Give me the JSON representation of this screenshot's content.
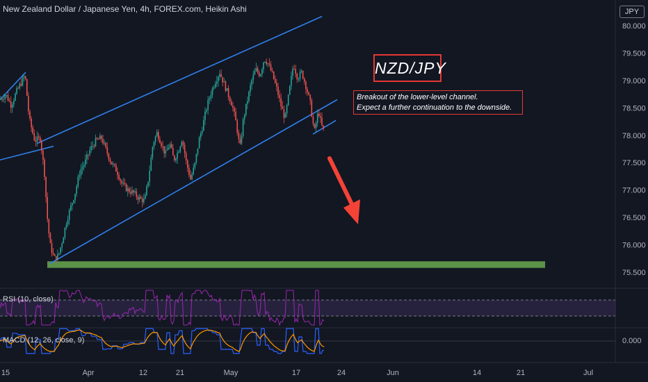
{
  "header": {
    "title": "New Zealand Dollar / Japanese Yen, 4h, FOREX.com, Heikin Ashi",
    "currency": "JPY"
  },
  "annotations": {
    "pair_label": "NZD/JPY",
    "note_line1": "Breakout of the lower-level channel.",
    "note_line2": "Expect a further continuation to the downside."
  },
  "indicators": {
    "rsi_label": "RSI (10, close)",
    "macd_label": "MACD (12, 26, close, 9)",
    "macd_value": "0.000"
  },
  "colors": {
    "background": "#131722",
    "up_candle": "#26a69a",
    "down_candle": "#ef5350",
    "channel_line": "#2962ff",
    "support_zone": "#6aa84f",
    "annotation_red": "#e53935",
    "rsi_line": "#9c27b0",
    "macd_line": "#2962ff",
    "signal_line": "#ff9800"
  },
  "chart_data": {
    "type": "candlestick",
    "style": "Heikin Ashi",
    "symbol": "NZD/JPY",
    "timeframe": "4h",
    "ylim": [
      75.35,
      80.3
    ],
    "y_ticks": [
      "80.000",
      "79.500",
      "79.000",
      "78.500",
      "78.000",
      "77.500",
      "77.000",
      "76.500",
      "76.000",
      "75.500"
    ],
    "x_ticks": [
      "15",
      "Apr",
      "12",
      "21",
      "May",
      "17",
      "24",
      "Jun",
      "14",
      "21",
      "Jul"
    ],
    "price_path": [
      [
        0,
        78.65
      ],
      [
        8,
        78.75
      ],
      [
        16,
        78.55
      ],
      [
        24,
        78.8
      ],
      [
        30,
        78.95
      ],
      [
        36,
        79.1
      ],
      [
        42,
        78.3
      ],
      [
        50,
        77.9
      ],
      [
        58,
        77.95
      ],
      [
        64,
        77.3
      ],
      [
        68,
        76.5
      ],
      [
        72,
        76.0
      ],
      [
        78,
        75.75
      ],
      [
        84,
        75.8
      ],
      [
        90,
        76.1
      ],
      [
        96,
        76.45
      ],
      [
        102,
        76.7
      ],
      [
        108,
        76.95
      ],
      [
        115,
        77.35
      ],
      [
        122,
        77.5
      ],
      [
        130,
        77.75
      ],
      [
        138,
        77.9
      ],
      [
        146,
        77.95
      ],
      [
        152,
        77.75
      ],
      [
        160,
        77.5
      ],
      [
        168,
        77.35
      ],
      [
        176,
        77.1
      ],
      [
        184,
        77.0
      ],
      [
        192,
        76.95
      ],
      [
        200,
        76.85
      ],
      [
        208,
        76.8
      ],
      [
        214,
        77.25
      ],
      [
        220,
        77.85
      ],
      [
        226,
        78.05
      ],
      [
        232,
        77.85
      ],
      [
        238,
        77.65
      ],
      [
        244,
        77.85
      ],
      [
        250,
        77.55
      ],
      [
        256,
        77.7
      ],
      [
        262,
        77.95
      ],
      [
        268,
        77.5
      ],
      [
        274,
        77.2
      ],
      [
        280,
        77.45
      ],
      [
        286,
        77.9
      ],
      [
        292,
        78.2
      ],
      [
        298,
        78.55
      ],
      [
        304,
        78.8
      ],
      [
        310,
        79.0
      ],
      [
        316,
        79.15
      ],
      [
        322,
        78.95
      ],
      [
        328,
        78.75
      ],
      [
        334,
        78.55
      ],
      [
        340,
        78.2
      ],
      [
        345,
        77.75
      ],
      [
        350,
        78.3
      ],
      [
        356,
        78.65
      ],
      [
        362,
        79.0
      ],
      [
        368,
        79.2
      ],
      [
        374,
        79.1
      ],
      [
        380,
        79.4
      ],
      [
        386,
        79.3
      ],
      [
        392,
        79.1
      ],
      [
        398,
        78.85
      ],
      [
        404,
        78.55
      ],
      [
        410,
        78.3
      ],
      [
        416,
        78.8
      ],
      [
        422,
        79.3
      ],
      [
        428,
        79.05
      ],
      [
        434,
        79.15
      ],
      [
        440,
        78.9
      ],
      [
        446,
        78.6
      ],
      [
        452,
        78.05
      ],
      [
        458,
        78.45
      ],
      [
        462,
        78.2
      ],
      [
        466,
        78.05
      ]
    ],
    "support_zone": {
      "from": 75.58,
      "to": 75.7
    },
    "channels": [
      {
        "name": "upper",
        "points": [
          [
            "53",
            77.85
          ],
          [
            "463",
            80.17
          ]
        ]
      },
      {
        "name": "lower",
        "points": [
          [
            "72",
            75.66
          ],
          [
            "485",
            78.65
          ]
        ]
      },
      {
        "name": "inner-lower",
        "points": [
          [
            "450",
            78.02
          ],
          [
            "483",
            78.27
          ]
        ]
      },
      {
        "name": "prior-upper",
        "points": [
          [
            "0",
            78.65
          ],
          [
            "37",
            79.15
          ]
        ]
      },
      {
        "name": "prior-lower",
        "points": [
          [
            "0",
            77.55
          ],
          [
            "77",
            77.8
          ]
        ]
      }
    ],
    "rsi": {
      "name": "RSI (10, close)",
      "levels": [
        70,
        30
      ]
    },
    "macd": {
      "name": "MACD (12, 26, close, 9)",
      "zero_label": "0.000"
    }
  }
}
